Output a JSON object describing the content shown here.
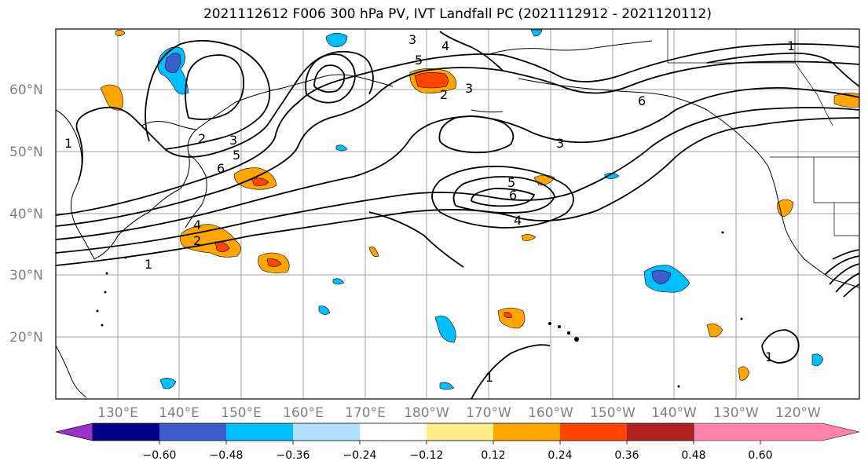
{
  "title": "2021112612 F006 300 hPa PV, IVT Landfall PC (2021112912 - 2021120112)",
  "map": {
    "lat_labels": [
      "60°N",
      "50°N",
      "40°N",
      "30°N",
      "20°N"
    ],
    "lon_labels": [
      "130°E",
      "140°E",
      "150°E",
      "160°E",
      "170°E",
      "180°W",
      "170°W",
      "160°W",
      "150°W",
      "140°W",
      "130°W",
      "120°W"
    ],
    "contour_labels": [
      "1",
      "2",
      "3",
      "4",
      "5",
      "6",
      "3",
      "4",
      "5",
      "2",
      "3",
      "6",
      "1",
      "3",
      "5",
      "6",
      "4",
      "2",
      "1",
      "1",
      "1"
    ]
  },
  "colorbar": {
    "tick_labels": [
      "−0.60",
      "−0.48",
      "−0.36",
      "−0.24",
      "−0.12",
      "0.12",
      "0.24",
      "0.36",
      "0.48",
      "0.60"
    ],
    "colors": [
      "#9932CC",
      "#00008B",
      "#3A5FCD",
      "#00BFFF",
      "#B0E2FF",
      "#FFFFFF",
      "#FFEC8B",
      "#FFA500",
      "#FF4500",
      "#B22222",
      "#FF82AB"
    ]
  },
  "colors": {
    "gridline": "#A0A0A0",
    "contour": "#000000",
    "coast": "#000000"
  }
}
